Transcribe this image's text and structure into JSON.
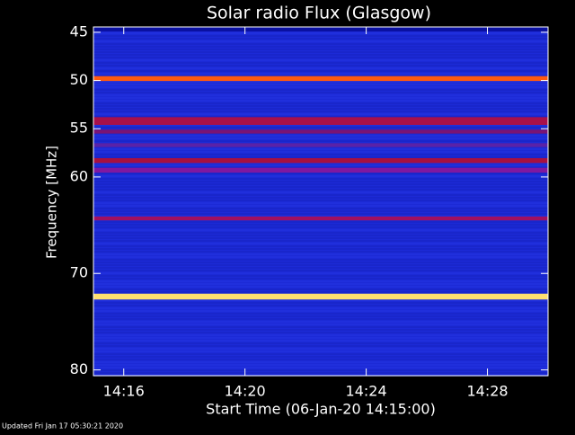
{
  "chart_data": {
    "type": "spectrogram",
    "title": "Solar radio Flux (Glasgow)",
    "y_label": "Frequency [MHz]",
    "x_label": "Start Time (06-Jan-20 14:15:00)",
    "footer": "Updated Fri Jan 17 05:30:21 2020",
    "xlim": [
      855,
      870
    ],
    "xticks": [
      {
        "value": 856,
        "label": "14:16"
      },
      {
        "value": 860,
        "label": "14:20"
      },
      {
        "value": 864,
        "label": "14:24"
      },
      {
        "value": 868,
        "label": "14:28"
      }
    ],
    "ylim": [
      80.6,
      44.45
    ],
    "yticks": [
      45,
      50,
      55,
      60,
      70,
      80
    ],
    "background_color": "#1c2ad6",
    "band_frequencies": [
      49.8,
      54.2,
      55.3,
      56.7,
      58.3,
      59.3,
      64.3,
      72.4
    ],
    "band_widths": [
      0.5,
      0.8,
      0.4,
      0.4,
      0.5,
      0.5,
      0.4,
      0.6
    ],
    "band_colors": [
      "#ff5a10",
      "#a8104a",
      "#7a1474",
      "#5a22a8",
      "#a81040",
      "#8018a0",
      "#a01060",
      "#ffe070"
    ]
  }
}
